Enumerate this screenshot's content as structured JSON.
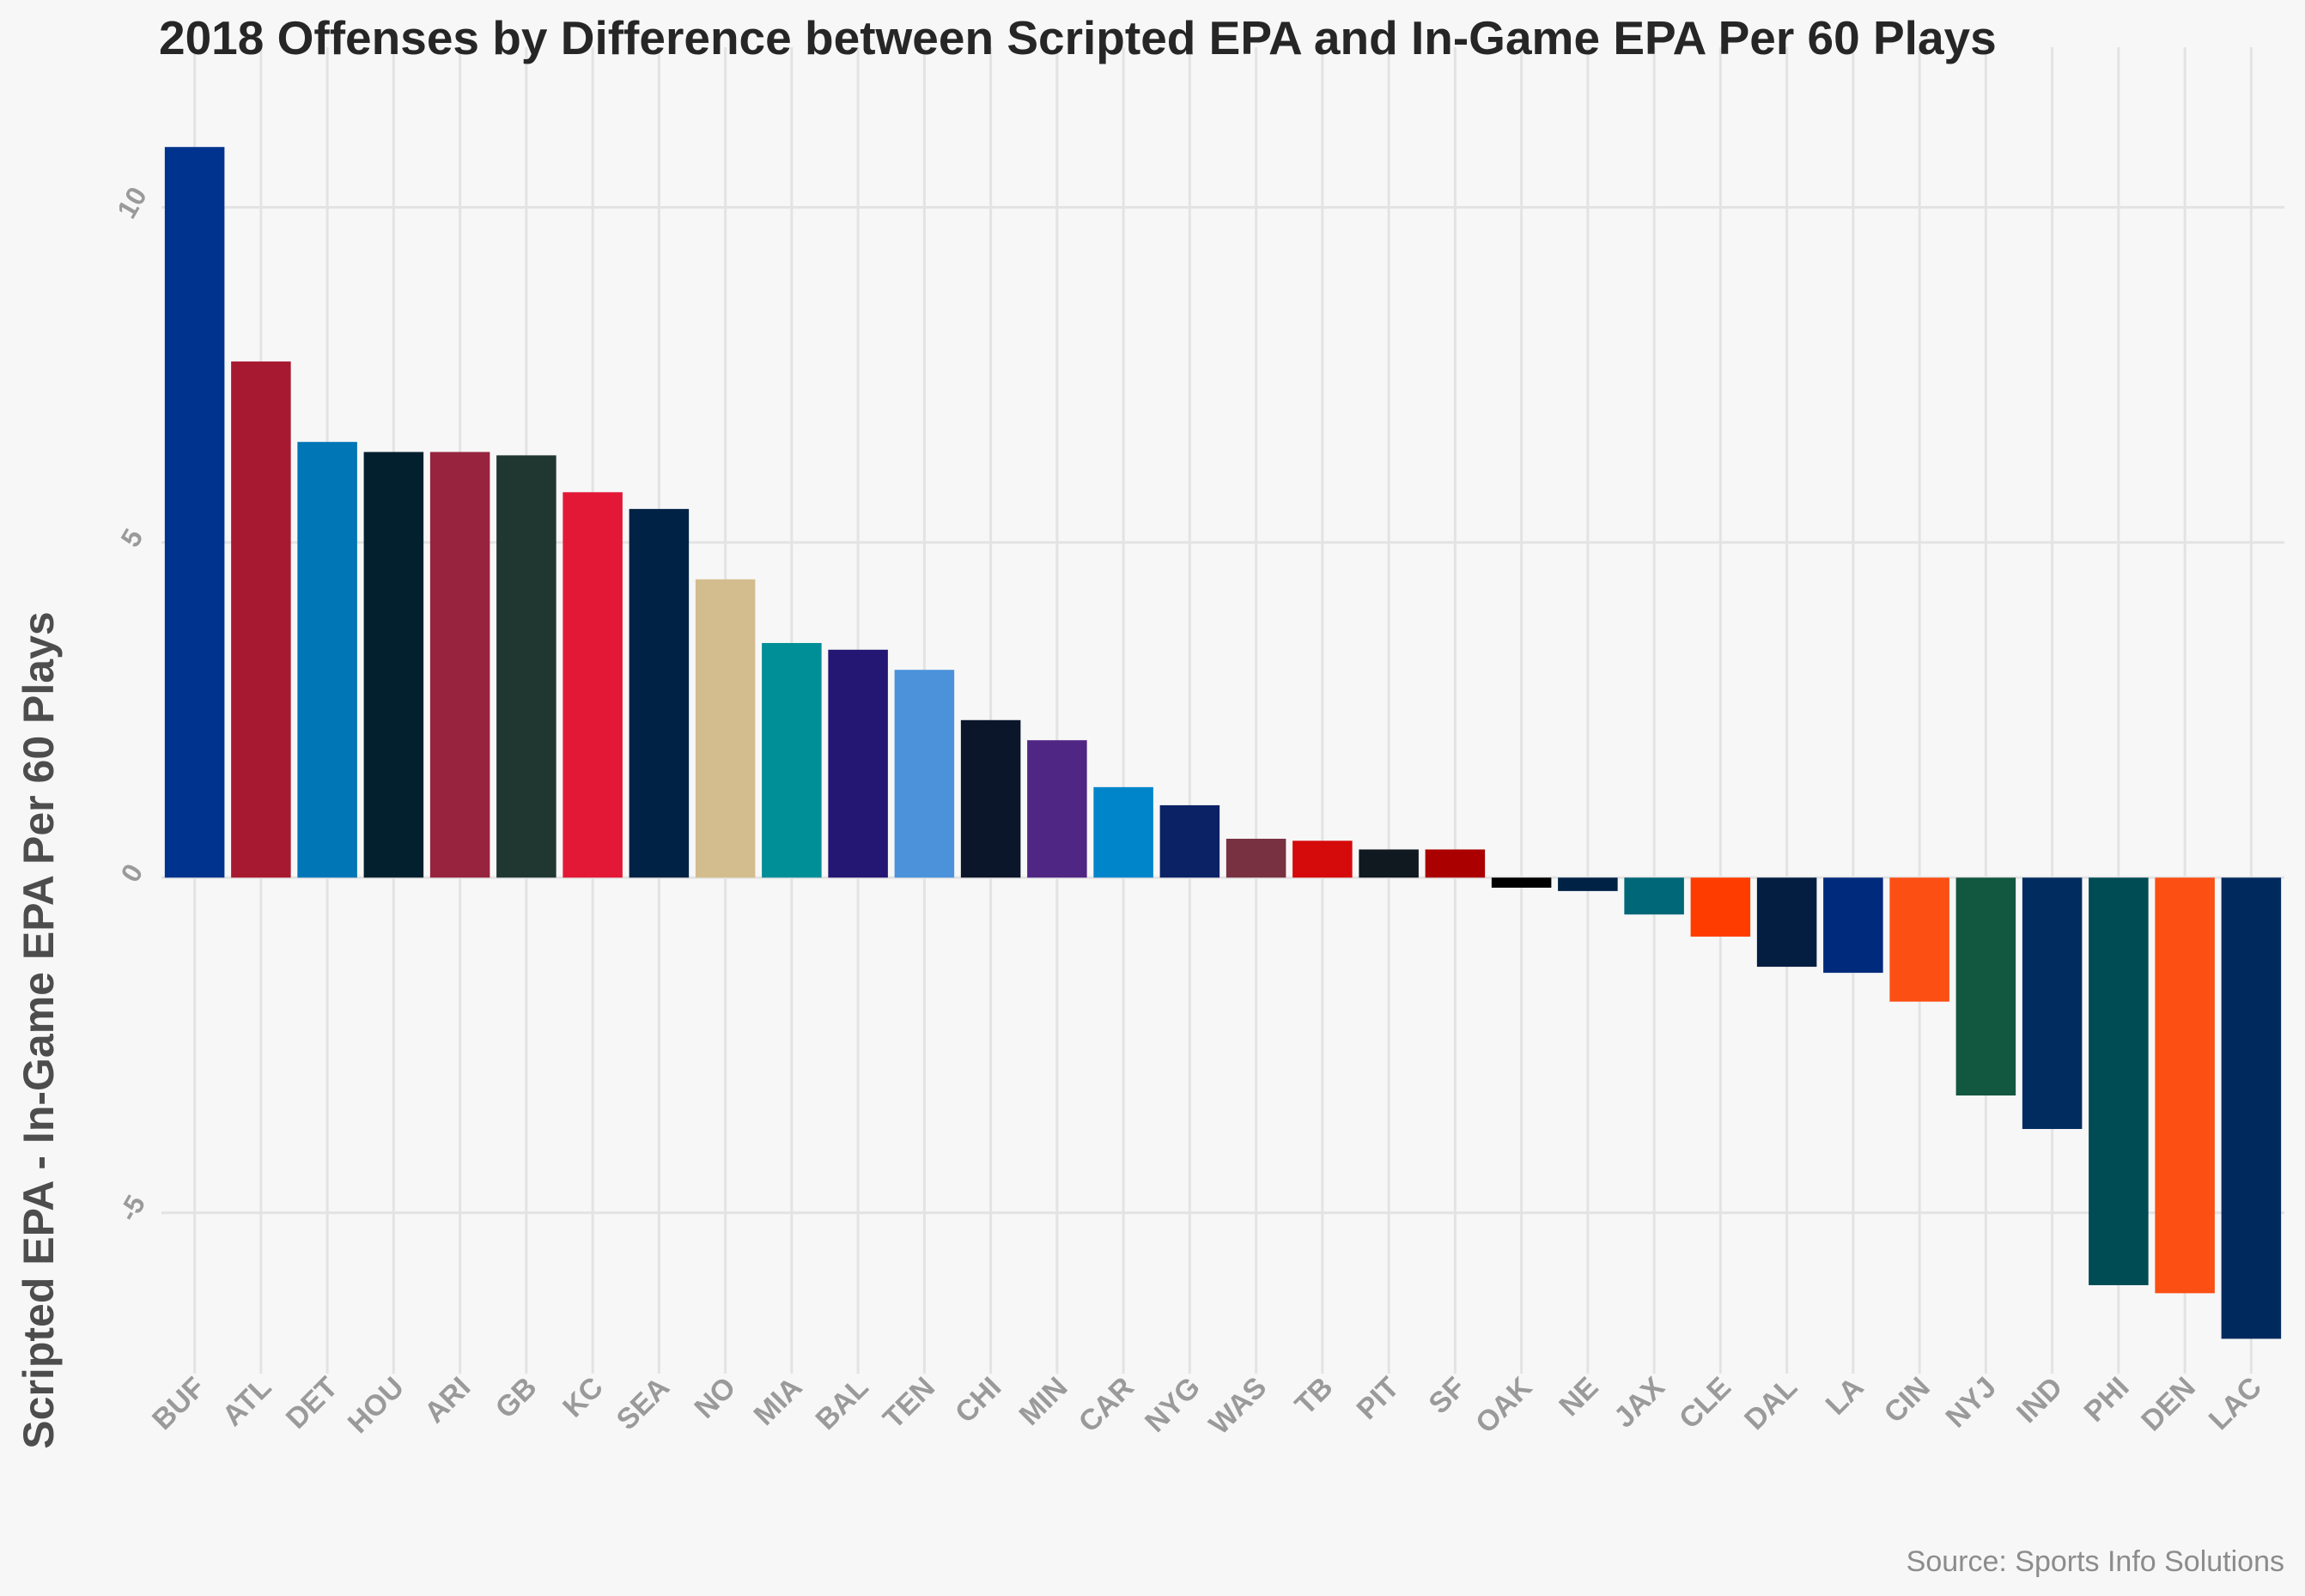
{
  "chart_data": {
    "type": "bar",
    "title": "2018 Offenses by Difference between Scripted EPA and In-Game EPA Per 60 Plays",
    "xlabel": "",
    "ylabel": "Scripted EPA - In-Game EPA Per 60 Plays",
    "caption": "Source: Sports Info Solutions",
    "ylim": [
      -7.4,
      11.3
    ],
    "yticks": [
      10,
      5,
      0,
      -5
    ],
    "ytick_labels": [
      "10",
      "5",
      "0",
      "-5"
    ],
    "grid": true,
    "legend": "none",
    "categories": [
      "BUF",
      "ATL",
      "DET",
      "HOU",
      "ARI",
      "GB",
      "KC",
      "SEA",
      "NO",
      "MIA",
      "BAL",
      "TEN",
      "CHI",
      "MIN",
      "CAR",
      "NYG",
      "WAS",
      "TB",
      "PIT",
      "SF",
      "OAK",
      "NE",
      "JAX",
      "CLE",
      "DAL",
      "LA",
      "CIN",
      "NYJ",
      "IND",
      "PHI",
      "DEN",
      "LAC"
    ],
    "values": [
      10.9,
      7.7,
      6.5,
      6.35,
      6.35,
      6.3,
      5.75,
      5.5,
      4.45,
      3.5,
      3.4,
      3.1,
      2.35,
      2.05,
      1.35,
      1.08,
      0.58,
      0.55,
      0.42,
      0.42,
      -0.15,
      -0.2,
      -0.55,
      -0.88,
      -1.33,
      -1.42,
      -1.85,
      -3.25,
      -3.75,
      -6.08,
      -6.2,
      -6.88
    ],
    "colors": [
      "#00338D",
      "#A71930",
      "#0076B6",
      "#03202F",
      "#97233F",
      "#203731",
      "#E31837",
      "#002244",
      "#D3BC8D",
      "#008E97",
      "#241773",
      "#4B92DB",
      "#0B162A",
      "#4F2683",
      "#0085CA",
      "#0B2265",
      "#773141",
      "#D50A0A",
      "#101820",
      "#AA0000",
      "#000000",
      "#002244",
      "#006778",
      "#FF3C00",
      "#041E42",
      "#002A7C",
      "#FB4F14",
      "#125740",
      "#002C5F",
      "#004C54",
      "#FB4F14",
      "#002A5E"
    ]
  }
}
